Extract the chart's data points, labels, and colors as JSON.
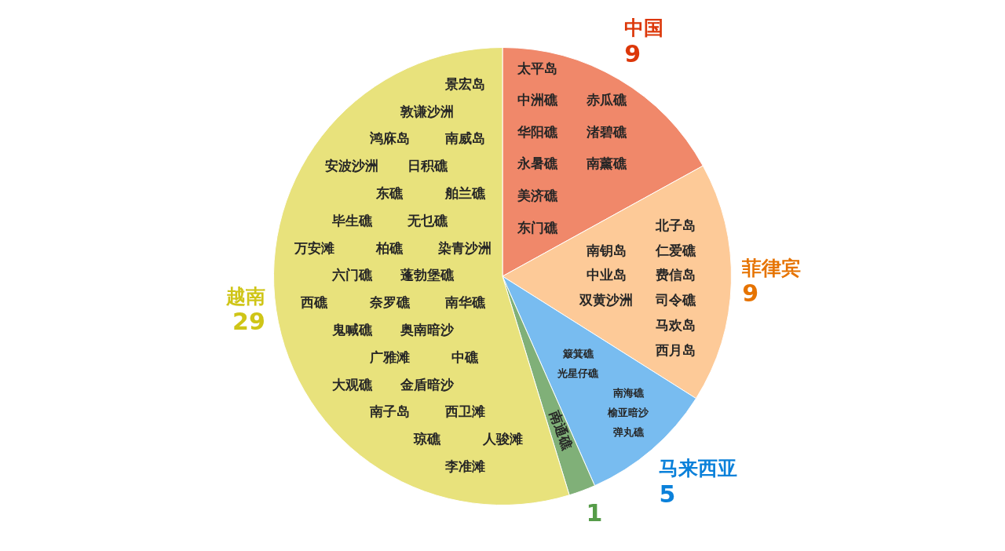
{
  "chart_data": {
    "type": "pie",
    "categories": [
      "中国",
      "菲律宾",
      "马来西亚",
      null,
      "越南"
    ],
    "values": [
      9,
      9,
      5,
      1,
      29
    ],
    "colors": [
      "#f0886a",
      "#fdca98",
      "#78bcf0",
      "#80b078",
      "#e8e27c"
    ],
    "data_labels": true,
    "annotations": [
      {
        "text": "太平岛",
        "x": "中国"
      },
      {
        "text": "中洲礁",
        "x": "中国"
      },
      {
        "text": "赤瓜礁",
        "x": "中国"
      },
      {
        "text": "华阳礁",
        "x": "中国"
      },
      {
        "text": "渚碧礁",
        "x": "中国"
      },
      {
        "text": "永暑礁",
        "x": "中国"
      },
      {
        "text": "南薰礁",
        "x": "中国"
      },
      {
        "text": "美济礁",
        "x": "中国"
      },
      {
        "text": "东门礁",
        "x": "中国"
      },
      {
        "text": "北子岛",
        "x": "菲律宾"
      },
      {
        "text": "南钥岛",
        "x": "菲律宾"
      },
      {
        "text": "仁爱礁",
        "x": "菲律宾"
      },
      {
        "text": "中业岛",
        "x": "菲律宾"
      },
      {
        "text": "费信岛",
        "x": "菲律宾"
      },
      {
        "text": "双黄沙洲",
        "x": "菲律宾"
      },
      {
        "text": "司令礁",
        "x": "菲律宾"
      },
      {
        "text": "马欢岛",
        "x": "菲律宾"
      },
      {
        "text": "西月岛",
        "x": "菲律宾"
      },
      {
        "text": "簸箕礁",
        "x": "马来西亚"
      },
      {
        "text": "光星仔礁",
        "x": "马来西亚"
      },
      {
        "text": "南海礁",
        "x": "马来西亚"
      },
      {
        "text": "榆亚暗沙",
        "x": "马来西亚"
      },
      {
        "text": "弹丸礁",
        "x": "马来西亚"
      },
      {
        "text": "南通礁"
      },
      {
        "text": "景宏岛",
        "x": "越南"
      },
      {
        "text": "敦谦沙洲",
        "x": "越南"
      },
      {
        "text": "鸿庥岛",
        "x": "越南"
      },
      {
        "text": "南威岛",
        "x": "越南"
      },
      {
        "text": "安波沙洲",
        "x": "越南"
      },
      {
        "text": "日积礁",
        "x": "越南"
      },
      {
        "text": "东礁",
        "x": "越南"
      },
      {
        "text": "舶兰礁",
        "x": "越南"
      },
      {
        "text": "毕生礁",
        "x": "越南"
      },
      {
        "text": "无乜礁",
        "x": "越南"
      },
      {
        "text": "万安滩",
        "x": "越南"
      },
      {
        "text": "柏礁",
        "x": "越南"
      },
      {
        "text": "染青沙洲",
        "x": "越南"
      },
      {
        "text": "六门礁",
        "x": "越南"
      },
      {
        "text": "蓬勃堡礁",
        "x": "越南"
      },
      {
        "text": "西礁",
        "x": "越南"
      },
      {
        "text": "奈罗礁",
        "x": "越南"
      },
      {
        "text": "南华礁",
        "x": "越南"
      },
      {
        "text": "鬼喊礁",
        "x": "越南"
      },
      {
        "text": "奥南暗沙",
        "x": "越南"
      },
      {
        "text": "广雅滩",
        "x": "越南"
      },
      {
        "text": "中礁",
        "x": "越南"
      },
      {
        "text": "大观礁",
        "x": "越南"
      },
      {
        "text": "金盾暗沙",
        "x": "越南"
      },
      {
        "text": "南子岛",
        "x": "越南"
      },
      {
        "text": "西卫滩",
        "x": "越南"
      },
      {
        "text": "琼礁",
        "x": "越南"
      },
      {
        "text": "人骏滩",
        "x": "越南"
      },
      {
        "text": "李准滩",
        "x": "越南"
      }
    ]
  }
}
